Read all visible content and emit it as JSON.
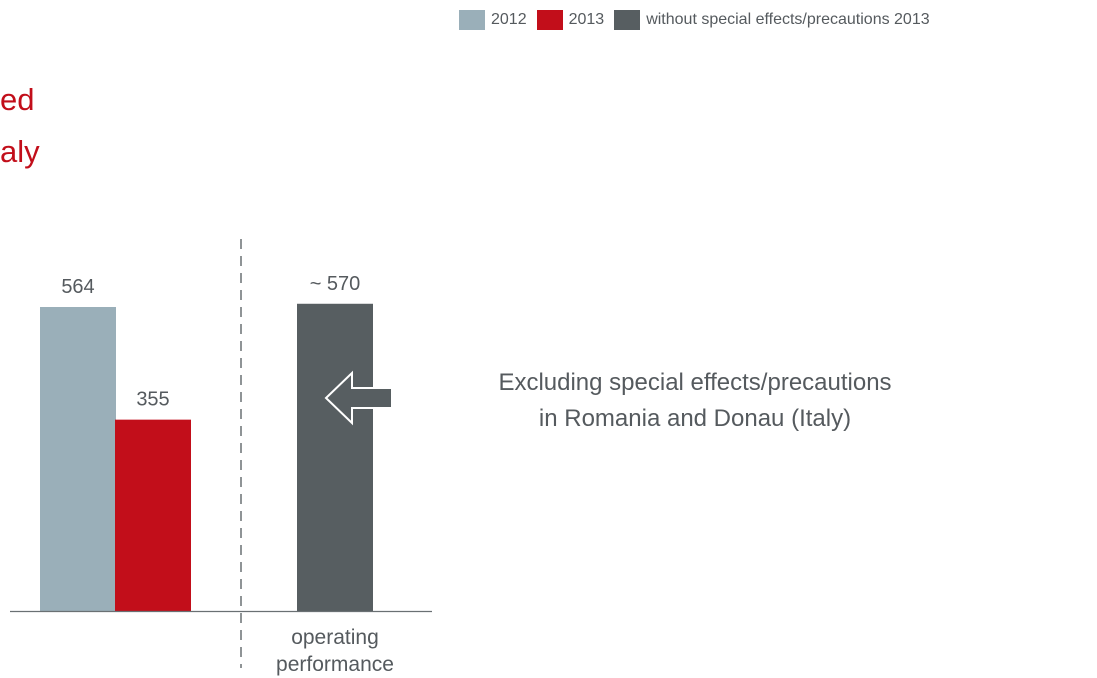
{
  "title": {
    "line1": "ed",
    "line2": "aly"
  },
  "legend": [
    {
      "label": "2012",
      "color": "#9aafb9"
    },
    {
      "label": "2013",
      "color": "#c20e1a"
    },
    {
      "label": "without special effects/precautions 2013",
      "color": "#575e61"
    }
  ],
  "annotation": {
    "line1": "Excluding special effects/precautions",
    "line2": "in Romania and Donau (Italy)"
  },
  "chart_data": {
    "type": "bar",
    "title": "",
    "xlabel": "",
    "ylabel": "",
    "ylim": [
      0,
      600
    ],
    "grid": false,
    "legend_placement": "top-right",
    "groups": [
      {
        "label": "",
        "bars": [
          {
            "series": "2012",
            "value": 564,
            "label": "564",
            "color": "#9aafb9"
          },
          {
            "series": "2013",
            "value": 355,
            "label": "355",
            "color": "#c20e1a"
          }
        ]
      },
      {
        "label": "operating performance",
        "bars": [
          {
            "series": "without special effects/precautions 2013",
            "value": 570,
            "label": "~ 570",
            "color": "#575e61"
          }
        ]
      }
    ],
    "arrow_color": "#575e61"
  }
}
